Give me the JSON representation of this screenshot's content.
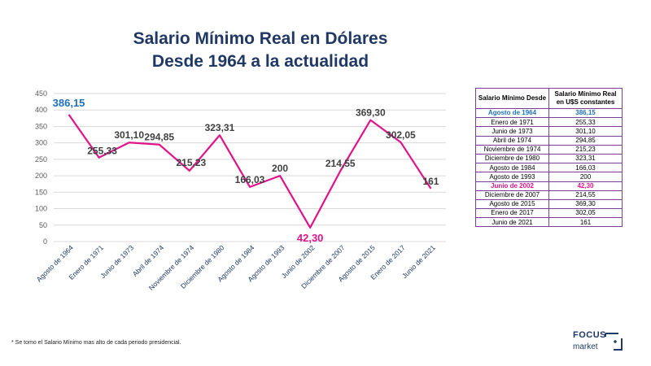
{
  "title": {
    "line1": "Salario Mínimo Real en Dólares",
    "line2": "Desde 1964 a la actualidad"
  },
  "chart_data": {
    "type": "line",
    "title": "Salario Mínimo Real en Dólares Desde 1964 a la actualidad",
    "categories": [
      "Agosto de 1964",
      "Enero de 1971",
      "Junio de 1973",
      "Abril de 1974",
      "Noviembre de 1974",
      "Diciembre de 1980",
      "Agosto de 1984",
      "Agosto de 1993",
      "Junio de 2002",
      "Diciembre de 2007",
      "Agosto de 2015",
      "Enero de 2017",
      "Junio de 2021"
    ],
    "values": [
      386.15,
      255.33,
      301.1,
      294.85,
      215.23,
      323.31,
      166.03,
      200,
      42.3,
      214.55,
      369.3,
      302.05,
      161
    ],
    "labels": [
      "386,15",
      "255,33",
      "301,10",
      "294,85",
      "215,23",
      "323,31",
      "166,03",
      "200",
      "42,30",
      "214,55",
      "369,30",
      "302,05",
      "161"
    ],
    "yticks": [
      0,
      50,
      100,
      150,
      200,
      250,
      300,
      350,
      400,
      450
    ],
    "ylim": [
      0,
      450
    ],
    "xlabel": "",
    "ylabel": "",
    "grid": true,
    "colors": {
      "line": "#e0148a",
      "max_label": "#1f70b8",
      "min_label": "#e0148a",
      "label": "#404040",
      "grid": "#d9d9d9",
      "axis_text": "#595959",
      "tick_label": "#1f3864"
    }
  },
  "table": {
    "headers": [
      "Salario Mínimo Desde",
      "Salario Mínimo Real en U$S constantes"
    ],
    "rows": [
      {
        "date": "Agosto de 1964",
        "value": "386,15",
        "highlight": "blue"
      },
      {
        "date": "Enero de 1971",
        "value": "255,33",
        "highlight": ""
      },
      {
        "date": "Junio de 1973",
        "value": "301,10",
        "highlight": ""
      },
      {
        "date": "Abril de 1974",
        "value": "294,85",
        "highlight": ""
      },
      {
        "date": "Noviembre de 1974",
        "value": "215,23",
        "highlight": ""
      },
      {
        "date": "Diciembre de 1980",
        "value": "323,31",
        "highlight": ""
      },
      {
        "date": "Agosto de 1984",
        "value": "166,03",
        "highlight": ""
      },
      {
        "date": "Agosto de 1993",
        "value": "200",
        "highlight": ""
      },
      {
        "date": "Junio de 2002",
        "value": "42,30",
        "highlight": "pink"
      },
      {
        "date": "Diciembre de 2007",
        "value": "214,55",
        "highlight": ""
      },
      {
        "date": "Agosto de 2015",
        "value": "369,30",
        "highlight": ""
      },
      {
        "date": "Enero de 2017",
        "value": "302,05",
        "highlight": ""
      },
      {
        "date": "Junio de 2021",
        "value": "161",
        "highlight": ""
      }
    ]
  },
  "footnote": "* Se tomo el Salario Mínimo mas alto de cada periodo presidencial.",
  "logo": {
    "brand": "FOCUS",
    "sub": "market"
  }
}
